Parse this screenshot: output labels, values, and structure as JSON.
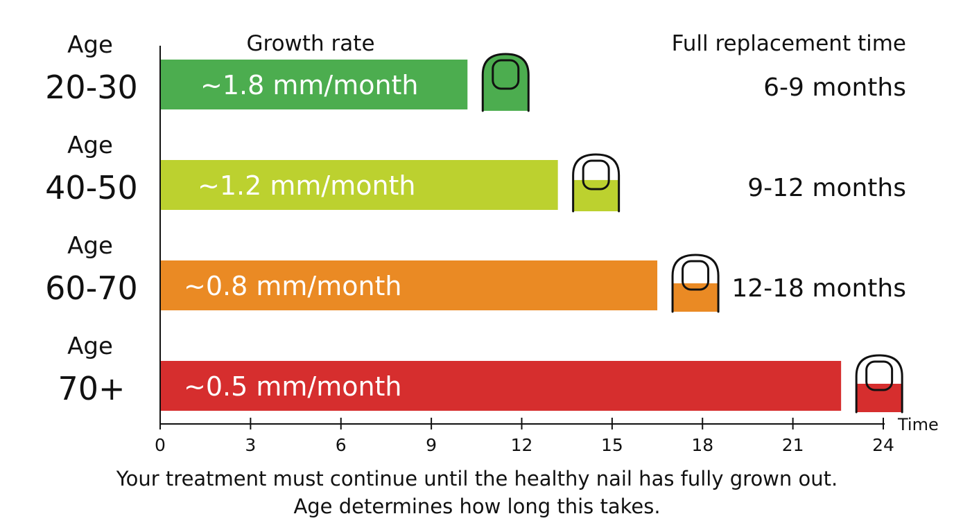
{
  "chart_data": {
    "type": "bar",
    "orientation": "horizontal",
    "header_growth": "Growth rate",
    "header_replacement": "Full replacement time",
    "xlabel": "Time",
    "xlim": [
      0,
      24
    ],
    "xticks": [
      0,
      3,
      6,
      9,
      12,
      15,
      18,
      21,
      24
    ],
    "grid": false,
    "rows": [
      {
        "age_label": "Age",
        "age_range": "20-30",
        "rate": "~1.8 mm/month",
        "replacement": "6-9 months",
        "value": 10.2,
        "color": "#4cad4f",
        "nail_fill_fraction": 1.0
      },
      {
        "age_label": "Age",
        "age_range": "40-50",
        "rate": "~1.2 mm/month",
        "replacement": "9-12 months",
        "value": 13.2,
        "color": "#bcd12f",
        "nail_fill_fraction": 0.55
      },
      {
        "age_label": "Age",
        "age_range": "60-70",
        "rate": "~0.8 mm/month",
        "replacement": "12-18 months",
        "value": 16.5,
        "color": "#ea8a24",
        "nail_fill_fraction": 0.5
      },
      {
        "age_label": "Age",
        "age_range": "70+",
        "rate": "~0.5 mm/month",
        "replacement": "",
        "value": 22.6,
        "color": "#d62e2e",
        "nail_fill_fraction": 0.5
      }
    ]
  },
  "caption": {
    "line1": "Your treatment must continue until the healthy nail has fully grown out.",
    "line2": "Age determines how long this takes."
  }
}
